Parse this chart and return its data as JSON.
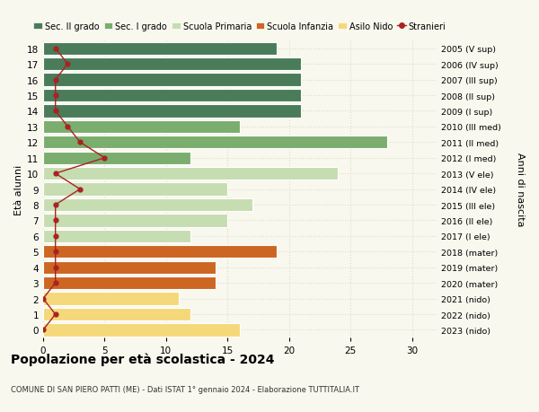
{
  "ages": [
    18,
    17,
    16,
    15,
    14,
    13,
    12,
    11,
    10,
    9,
    8,
    7,
    6,
    5,
    4,
    3,
    2,
    1,
    0
  ],
  "right_labels": [
    "2005 (V sup)",
    "2006 (IV sup)",
    "2007 (III sup)",
    "2008 (II sup)",
    "2009 (I sup)",
    "2010 (III med)",
    "2011 (II med)",
    "2012 (I med)",
    "2013 (V ele)",
    "2014 (IV ele)",
    "2015 (III ele)",
    "2016 (II ele)",
    "2017 (I ele)",
    "2018 (mater)",
    "2019 (mater)",
    "2020 (mater)",
    "2021 (nido)",
    "2022 (nido)",
    "2023 (nido)"
  ],
  "bar_values": [
    19,
    21,
    21,
    21,
    21,
    16,
    28,
    12,
    24,
    15,
    17,
    15,
    12,
    19,
    14,
    14,
    11,
    12,
    16
  ],
  "bar_colors": [
    "#4a7c59",
    "#4a7c59",
    "#4a7c59",
    "#4a7c59",
    "#4a7c59",
    "#7aad6e",
    "#7aad6e",
    "#7aad6e",
    "#c5ddb0",
    "#c5ddb0",
    "#c5ddb0",
    "#c5ddb0",
    "#c5ddb0",
    "#cc6622",
    "#cc6622",
    "#cc6622",
    "#f5d87a",
    "#f5d87a",
    "#f5d87a"
  ],
  "stranieri_values": [
    1,
    2,
    1,
    1,
    1,
    2,
    3,
    5,
    1,
    3,
    1,
    1,
    1,
    1,
    1,
    1,
    0,
    1,
    0
  ],
  "stranieri_color": "#aa2222",
  "legend_labels": [
    "Sec. II grado",
    "Sec. I grado",
    "Scuola Primaria",
    "Scuola Infanzia",
    "Asilo Nido",
    "Stranieri"
  ],
  "legend_colors": [
    "#4a7c59",
    "#7aad6e",
    "#c5ddb0",
    "#cc6622",
    "#f5d87a",
    "#aa2222"
  ],
  "ylabel": "Età alunni",
  "right_ylabel": "Anni di nascita",
  "title": "Popolazione per età scolastica - 2024",
  "subtitle": "COMUNE DI SAN PIERO PATTI (ME) - Dati ISTAT 1° gennaio 2024 - Elaborazione TUTTITALIA.IT",
  "xlim": [
    0,
    32
  ],
  "background_color": "#f8f8ee",
  "grid_color": "#ddddcc"
}
